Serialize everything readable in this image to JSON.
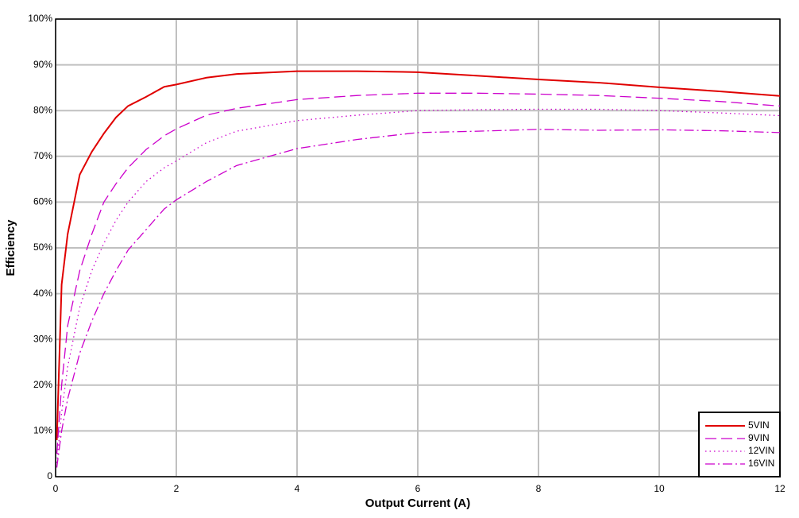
{
  "chart_data": {
    "type": "line",
    "x_label": "Output Current (A)",
    "y_label": "Efficiency",
    "x": [
      0.02,
      0.1,
      0.2,
      0.4,
      0.6,
      0.8,
      1,
      1.2,
      1.5,
      1.8,
      2,
      2.5,
      3,
      4,
      5,
      6,
      7,
      8,
      9,
      10,
      11,
      12
    ],
    "series": [
      {
        "name": "5VIN",
        "color": "#e00000",
        "dash": "solid",
        "values": [
          8,
          42,
          53,
          66,
          71,
          75,
          78.5,
          81,
          83,
          85.2,
          85.7,
          87.2,
          88,
          88.6,
          88.6,
          88.4,
          87.6,
          86.8,
          86.1,
          85.1,
          84.2,
          83.2
        ]
      },
      {
        "name": "9VIN",
        "color": "#cc00cc",
        "dash": "dash",
        "values": [
          5,
          20,
          33,
          45,
          53,
          60,
          64,
          67.5,
          71.5,
          74.5,
          76,
          79,
          80.5,
          82.4,
          83.3,
          83.8,
          83.8,
          83.6,
          83.3,
          82.7,
          82,
          81
        ]
      },
      {
        "name": "12VIN",
        "color": "#cc00cc",
        "dash": "dot",
        "values": [
          3,
          14,
          24,
          37,
          45,
          51,
          56,
          60,
          64.5,
          67.5,
          69,
          73,
          75.5,
          77.8,
          79,
          80,
          80.2,
          80.3,
          80.3,
          80,
          79.5,
          78.9
        ]
      },
      {
        "name": "16VIN",
        "color": "#cc00cc",
        "dash": "dashdot",
        "values": [
          2,
          10,
          17,
          27,
          34,
          40,
          45,
          49.5,
          54,
          58.5,
          60.5,
          64.5,
          68,
          71.7,
          73.7,
          75.2,
          75.5,
          75.9,
          75.7,
          75.8,
          75.6,
          75.2
        ]
      }
    ],
    "xlim": [
      0,
      12
    ],
    "xticks": [
      0,
      2,
      4,
      6,
      8,
      10,
      12
    ],
    "ylim": [
      0,
      100
    ],
    "yticks": [
      0,
      {
        "value": 10,
        "label": "10%"
      },
      {
        "value": 20,
        "label": "20%"
      },
      {
        "value": 30,
        "label": "30%"
      },
      {
        "value": 40,
        "label": "40%"
      },
      {
        "value": 50,
        "label": "50%"
      },
      {
        "value": 60,
        "label": "60%"
      },
      {
        "value": 70,
        "label": "70%"
      },
      {
        "value": 80,
        "label": "80%"
      },
      {
        "value": 90,
        "label": "90%"
      },
      {
        "value": 100,
        "label": "100%"
      }
    ],
    "grid": true,
    "legend": "lower right"
  }
}
